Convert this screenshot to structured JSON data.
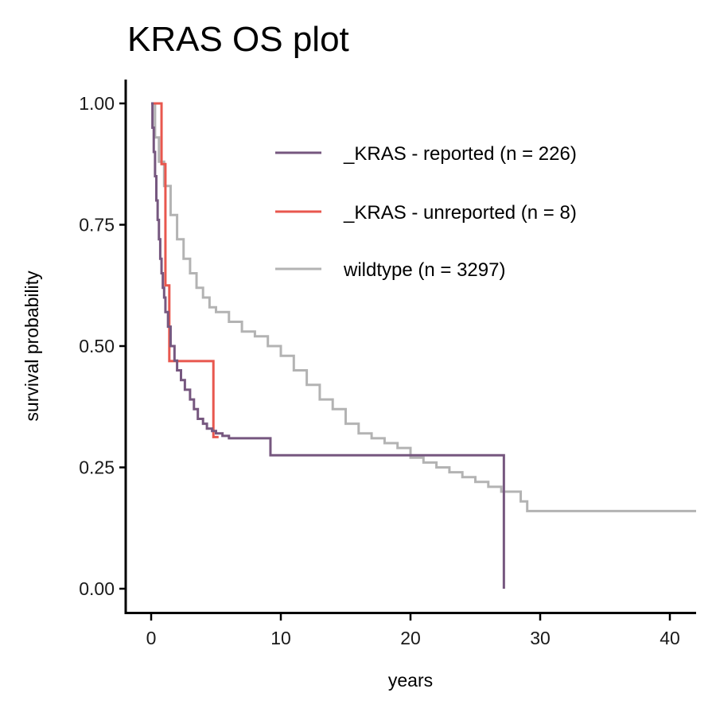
{
  "chart_data": {
    "type": "line",
    "title": "KRAS OS plot",
    "xlabel": "years",
    "ylabel": "survival probability",
    "xlim": [
      -2,
      42
    ],
    "ylim": [
      -0.05,
      1.05
    ],
    "x_ticks": [
      0,
      10,
      20,
      30,
      40
    ],
    "x_tick_labels": [
      "0",
      "10",
      "20",
      "30",
      "40"
    ],
    "y_ticks": [
      0,
      0.25,
      0.5,
      0.75,
      1.0
    ],
    "y_tick_labels": [
      "0.00",
      "0.25",
      "0.50",
      "0.75",
      "1.00"
    ],
    "grid": false,
    "legend_position": "top-right",
    "step": true,
    "series": [
      {
        "name": "_KRAS - reported (n = 226)",
        "color": "#76577f",
        "x": [
          0,
          0.1,
          0.2,
          0.3,
          0.4,
          0.5,
          0.6,
          0.7,
          0.8,
          0.9,
          1.0,
          1.1,
          1.3,
          1.5,
          1.8,
          2.0,
          2.3,
          2.6,
          3.0,
          3.3,
          3.6,
          4.0,
          4.3,
          4.7,
          5.0,
          5.5,
          6.0,
          6.5,
          7.0,
          9.2,
          27.2
        ],
        "y": [
          1.0,
          0.95,
          0.9,
          0.85,
          0.8,
          0.76,
          0.72,
          0.68,
          0.65,
          0.62,
          0.6,
          0.57,
          0.54,
          0.5,
          0.47,
          0.45,
          0.43,
          0.41,
          0.39,
          0.37,
          0.35,
          0.34,
          0.33,
          0.325,
          0.32,
          0.315,
          0.31,
          0.31,
          0.31,
          0.275,
          0.0
        ]
      },
      {
        "name": "_KRAS - unreported (n = 8)",
        "color": "#e8574e",
        "x": [
          0,
          0.3,
          0.8,
          1.3,
          2.4,
          4.8,
          6.1
        ],
        "y": [
          1.0,
          1.0,
          0.875,
          0.625,
          0.469,
          0.469,
          0.3125
        ],
        "x_raw_steps": [
          0.3,
          0.8,
          1.1,
          1.4,
          4.8,
          6.1
        ]
      },
      {
        "name": "wildtype (n = 3297)",
        "color": "#b3b3b3",
        "x": [
          0,
          0.3,
          0.6,
          1.0,
          1.5,
          2.0,
          2.5,
          3.0,
          3.5,
          4.0,
          4.5,
          5.0,
          6.0,
          7.0,
          8.0,
          9.0,
          10.0,
          11.0,
          12.0,
          13.0,
          14.0,
          15.0,
          16.0,
          17.0,
          18.0,
          19.0,
          20.0,
          21.0,
          22.0,
          23.0,
          24.0,
          25.0,
          26.0,
          27.0,
          28.0,
          28.5,
          29.0,
          35.0,
          42.0
        ],
        "y": [
          1.0,
          0.93,
          0.88,
          0.83,
          0.77,
          0.72,
          0.68,
          0.65,
          0.62,
          0.6,
          0.58,
          0.57,
          0.55,
          0.53,
          0.52,
          0.5,
          0.48,
          0.45,
          0.42,
          0.39,
          0.37,
          0.34,
          0.32,
          0.31,
          0.3,
          0.29,
          0.27,
          0.26,
          0.25,
          0.24,
          0.23,
          0.22,
          0.21,
          0.2,
          0.2,
          0.18,
          0.16,
          0.16,
          0.16
        ]
      }
    ]
  }
}
